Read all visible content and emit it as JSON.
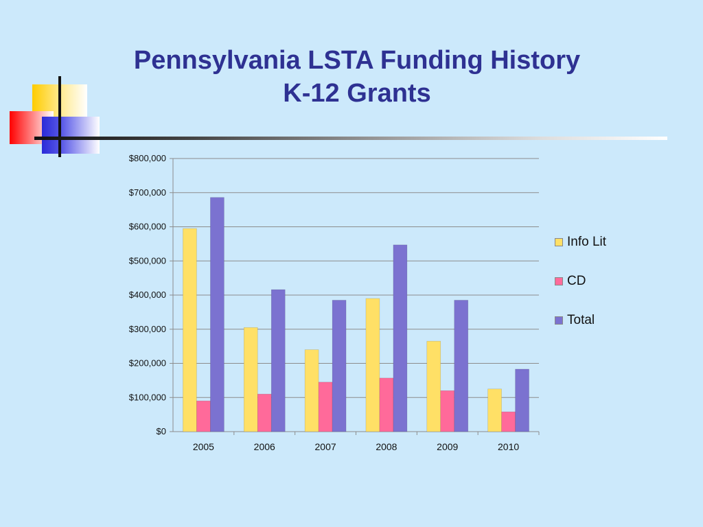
{
  "slide": {
    "title_line1": "Pennsylvania LSTA Funding History",
    "title_line2": "K-12 Grants"
  },
  "chart_data": {
    "type": "bar",
    "categories": [
      "2005",
      "2006",
      "2007",
      "2008",
      "2009",
      "2010"
    ],
    "series": [
      {
        "name": "Info Lit",
        "color": "#ffe066",
        "values": [
          595000,
          305000,
          240000,
          390000,
          265000,
          125000
        ]
      },
      {
        "name": "CD",
        "color": "#ff6a9a",
        "values": [
          90000,
          110000,
          145000,
          157000,
          120000,
          58000
        ]
      },
      {
        "name": "Total",
        "color": "#7b72d0",
        "values": [
          686000,
          416000,
          385000,
          547000,
          385000,
          183000
        ]
      }
    ],
    "ylim": [
      0,
      800000
    ],
    "yticks": [
      "$0",
      "$100,000",
      "$200,000",
      "$300,000",
      "$400,000",
      "$500,000",
      "$600,000",
      "$700,000",
      "$800,000"
    ],
    "grid": true,
    "legend_position": "right"
  }
}
